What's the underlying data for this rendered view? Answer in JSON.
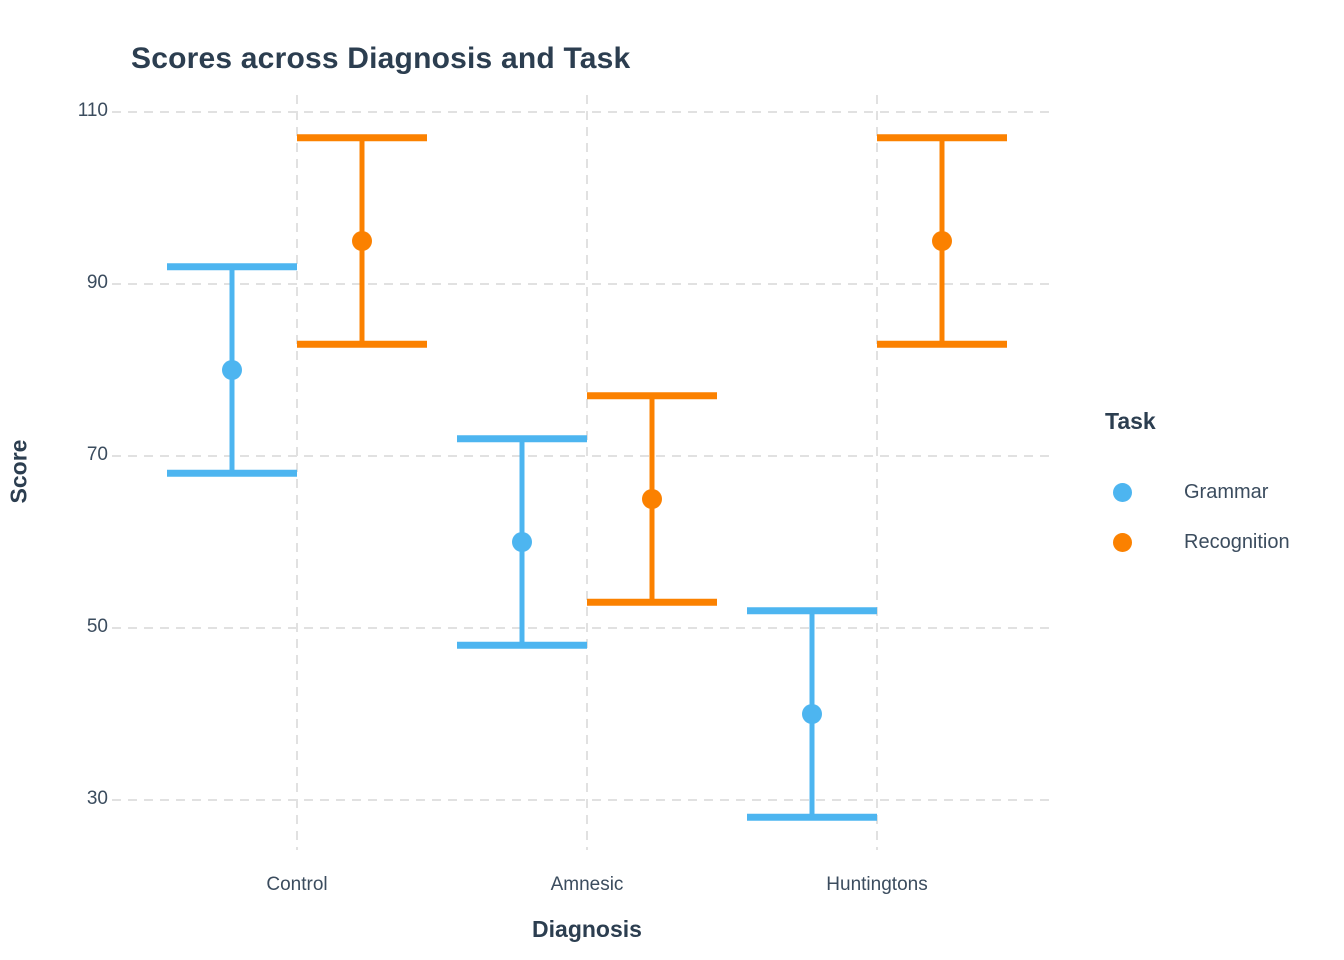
{
  "title": "Scores across Diagnosis and Task",
  "x_axis": {
    "label": "Diagnosis",
    "tick_labels": [
      "Control",
      "Amnesic",
      "Huntingtons"
    ]
  },
  "y_axis": {
    "label": "Score",
    "tick_values": [
      30,
      50,
      70,
      90,
      110
    ]
  },
  "legend": {
    "title": "Task",
    "items": [
      {
        "label": "Grammar",
        "color": "#4DB5F0"
      },
      {
        "label": "Recognition",
        "color": "#FB8100"
      }
    ]
  },
  "colors": {
    "title_text": "#2C3E50",
    "axis_title_text": "#2C3E50",
    "tick_text": "#3B4C5E",
    "gridline": "#E1E1E1",
    "background": "#FFFFFF",
    "grammar": "#4DB5F0",
    "recognition": "#FB8100"
  },
  "chart_data": {
    "type": "scatter",
    "subtype": "point-with-error-bars",
    "title": "Scores across Diagnosis and Task",
    "xlabel": "Diagnosis",
    "ylabel": "Score",
    "categories": [
      "Control",
      "Amnesic",
      "Huntingtons"
    ],
    "series": [
      {
        "name": "Grammar",
        "color": "#4DB5F0",
        "means": [
          80,
          60,
          40
        ],
        "ci_low": [
          68,
          48,
          28
        ],
        "ci_high": [
          92,
          72,
          52
        ]
      },
      {
        "name": "Recognition",
        "color": "#FB8100",
        "means": [
          95,
          65,
          95
        ],
        "ci_low": [
          83,
          53,
          83
        ],
        "ci_high": [
          107,
          77,
          107
        ]
      }
    ],
    "error_bar_note": "all intervals are mean ± 12",
    "yticks": [
      30,
      50,
      70,
      90,
      110
    ],
    "ylim": [
      24,
      112
    ],
    "grid": "dashed gridlines on both axes, no panel border",
    "legend_position": "right of panel, middle"
  }
}
